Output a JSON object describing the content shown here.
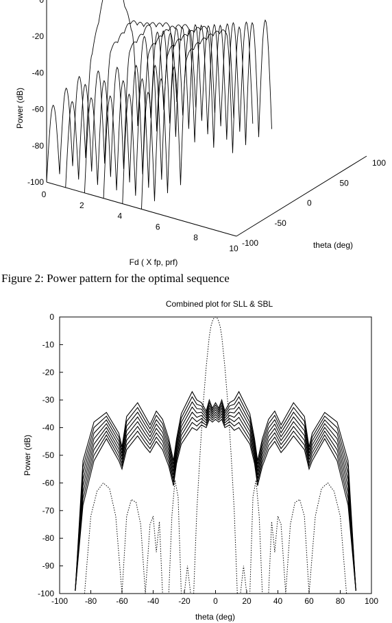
{
  "figure_caption": "Figure 2:  Power pattern for the optimal sequence",
  "chart_data": [
    {
      "type": "surface-3d",
      "title": "",
      "zlabel": "Power (dB)",
      "xlabel": "Fd ( X fp, prf)",
      "ylabel": "theta (deg)",
      "z_ticks": [
        "0",
        "-20",
        "-40",
        "-60",
        "-80",
        "-100"
      ],
      "x_ticks": [
        "0",
        "2",
        "4",
        "6",
        "8",
        "10"
      ],
      "y_ticks": [
        "-100",
        "-50",
        "0",
        "50",
        "100"
      ],
      "zlim": [
        -100,
        0
      ],
      "xlim": [
        0,
        10
      ],
      "ylim": [
        -100,
        100
      ],
      "series": [
        {
          "fd": 0,
          "values_db": [
            -100,
            -60,
            -100,
            -55,
            -100,
            -53,
            -100,
            -45,
            -30,
            -15,
            0,
            -15,
            -30,
            -45,
            -100,
            -53,
            -100,
            -55,
            -100,
            -60,
            -100
          ]
        },
        {
          "fd": 1,
          "values_db": [
            -100,
            -55,
            -100,
            -50,
            -100,
            -47,
            -100,
            -40,
            -38,
            -35,
            -32,
            -35,
            -38,
            -40,
            -100,
            -47,
            -100,
            -50,
            -100,
            -55,
            -100
          ]
        },
        {
          "fd": 2,
          "values_db": [
            -100,
            -50,
            -100,
            -45,
            -100,
            -42,
            -100,
            -37,
            -35,
            -33,
            -30,
            -33,
            -35,
            -37,
            -100,
            -42,
            -100,
            -45,
            -100,
            -50,
            -100
          ]
        },
        {
          "fd": 3,
          "values_db": [
            -100,
            -46,
            -100,
            -42,
            -100,
            -38,
            -100,
            -35,
            -33,
            -31,
            -30,
            -31,
            -33,
            -35,
            -100,
            -38,
            -100,
            -42,
            -100,
            -46,
            -100
          ]
        },
        {
          "fd": 4,
          "values_db": [
            -100,
            -42,
            -100,
            -38,
            -100,
            -35,
            -100,
            -33,
            -31,
            -30,
            -30,
            -30,
            -31,
            -33,
            -100,
            -35,
            -100,
            -38,
            -100,
            -42,
            -100
          ]
        },
        {
          "fd": 5,
          "values_db": [
            -100,
            -38,
            -100,
            -35,
            -100,
            -33,
            -100,
            -32,
            -30,
            -29,
            -29,
            -29,
            -30,
            -32,
            -100,
            -33,
            -100,
            -35,
            -100,
            -38,
            -100
          ]
        }
      ]
    },
    {
      "type": "line",
      "title": "Combined plot for SLL & SBL",
      "xlabel": "theta (deg)",
      "ylabel": "Power (dB)",
      "xlim": [
        -100,
        100
      ],
      "ylim": [
        -100,
        0
      ],
      "x_ticks": [
        "-100",
        "-80",
        "-60",
        "-40",
        "-20",
        "0",
        "20",
        "40",
        "60",
        "80",
        "100"
      ],
      "y_ticks": [
        "0",
        "-10",
        "-20",
        "-30",
        "-40",
        "-50",
        "-60",
        "-70",
        "-80",
        "-90",
        "-100"
      ],
      "grid": false,
      "envelope": {
        "x": [
          -90,
          -85,
          -78,
          -70,
          -62,
          -60,
          -57,
          -50,
          -45,
          -42,
          -38,
          -34,
          -30,
          -27,
          -25,
          -22,
          -15,
          -12,
          -9,
          -6,
          -4,
          -2,
          0,
          2,
          4,
          6,
          9,
          12,
          15,
          22,
          25,
          27,
          30,
          34,
          38,
          42,
          45,
          50,
          57,
          60,
          62,
          70,
          78,
          85,
          90
        ],
        "upper": [
          -99,
          -52,
          -38,
          -34.5,
          -42,
          -47,
          -36,
          -31,
          -36,
          -39,
          -34,
          -37,
          -44,
          -52,
          -44,
          -35,
          -27,
          -30,
          -31,
          -34,
          -30,
          -33,
          -31,
          -33,
          -30,
          -34,
          -31,
          -30,
          -27,
          -35,
          -44,
          -52,
          -44,
          -37,
          -34,
          -39,
          -36,
          -31,
          -36,
          -47,
          -42,
          -34.5,
          -38,
          -52,
          -99
        ],
        "lower": [
          -99,
          -68,
          -52,
          -44,
          -52,
          -55,
          -48,
          -43,
          -47,
          -49,
          -45,
          -48,
          -54,
          -61,
          -53,
          -46,
          -40,
          -41,
          -39,
          -40,
          -37,
          -38,
          -37,
          -38,
          -37,
          -40,
          -39,
          -41,
          -40,
          -46,
          -53,
          -61,
          -54,
          -48,
          -45,
          -49,
          -47,
          -43,
          -48,
          -55,
          -52,
          -44,
          -52,
          -68,
          -99
        ]
      },
      "series": [
        {
          "curve": "mainlobe",
          "x": [
            -14,
            -12,
            -10,
            -8,
            -6,
            -4,
            -3,
            -2,
            -1,
            0,
            1,
            2,
            3,
            4,
            6,
            8,
            10,
            12,
            14
          ],
          "values": [
            -100,
            -70,
            -50,
            -32,
            -18,
            -7,
            -3.5,
            -1.5,
            -0.4,
            0,
            -0.4,
            -1.5,
            -3.5,
            -7,
            -18,
            -32,
            -50,
            -70,
            -100
          ]
        },
        {
          "curve": "sidelobes-lower",
          "x": [
            -84,
            -80,
            -76,
            -72,
            -68,
            -64,
            -60,
            -57,
            -54,
            -51,
            -48,
            -45,
            -42,
            -40,
            -38,
            -36,
            -34,
            -30,
            -28,
            -26,
            -24,
            -22,
            -20,
            -18,
            -16,
            16,
            18,
            20,
            22,
            24,
            26,
            28,
            30,
            34,
            36,
            38,
            40,
            42,
            45,
            48,
            51,
            54,
            57,
            60,
            64,
            68,
            72,
            76,
            80,
            84
          ],
          "values": [
            -100,
            -72,
            -63,
            -60,
            -62,
            -72,
            -100,
            -72,
            -66,
            -67,
            -75,
            -100,
            -75,
            -72,
            -85,
            -74,
            -100,
            -100,
            -72,
            -59,
            -65,
            -100,
            -100,
            -90,
            -100,
            -100,
            -90,
            -100,
            -100,
            -65,
            -59,
            -72,
            -100,
            -100,
            -74,
            -85,
            -72,
            -75,
            -100,
            -75,
            -67,
            -66,
            -72,
            -100,
            -72,
            -62,
            -60,
            -63,
            -72,
            -100
          ]
        }
      ]
    }
  ]
}
